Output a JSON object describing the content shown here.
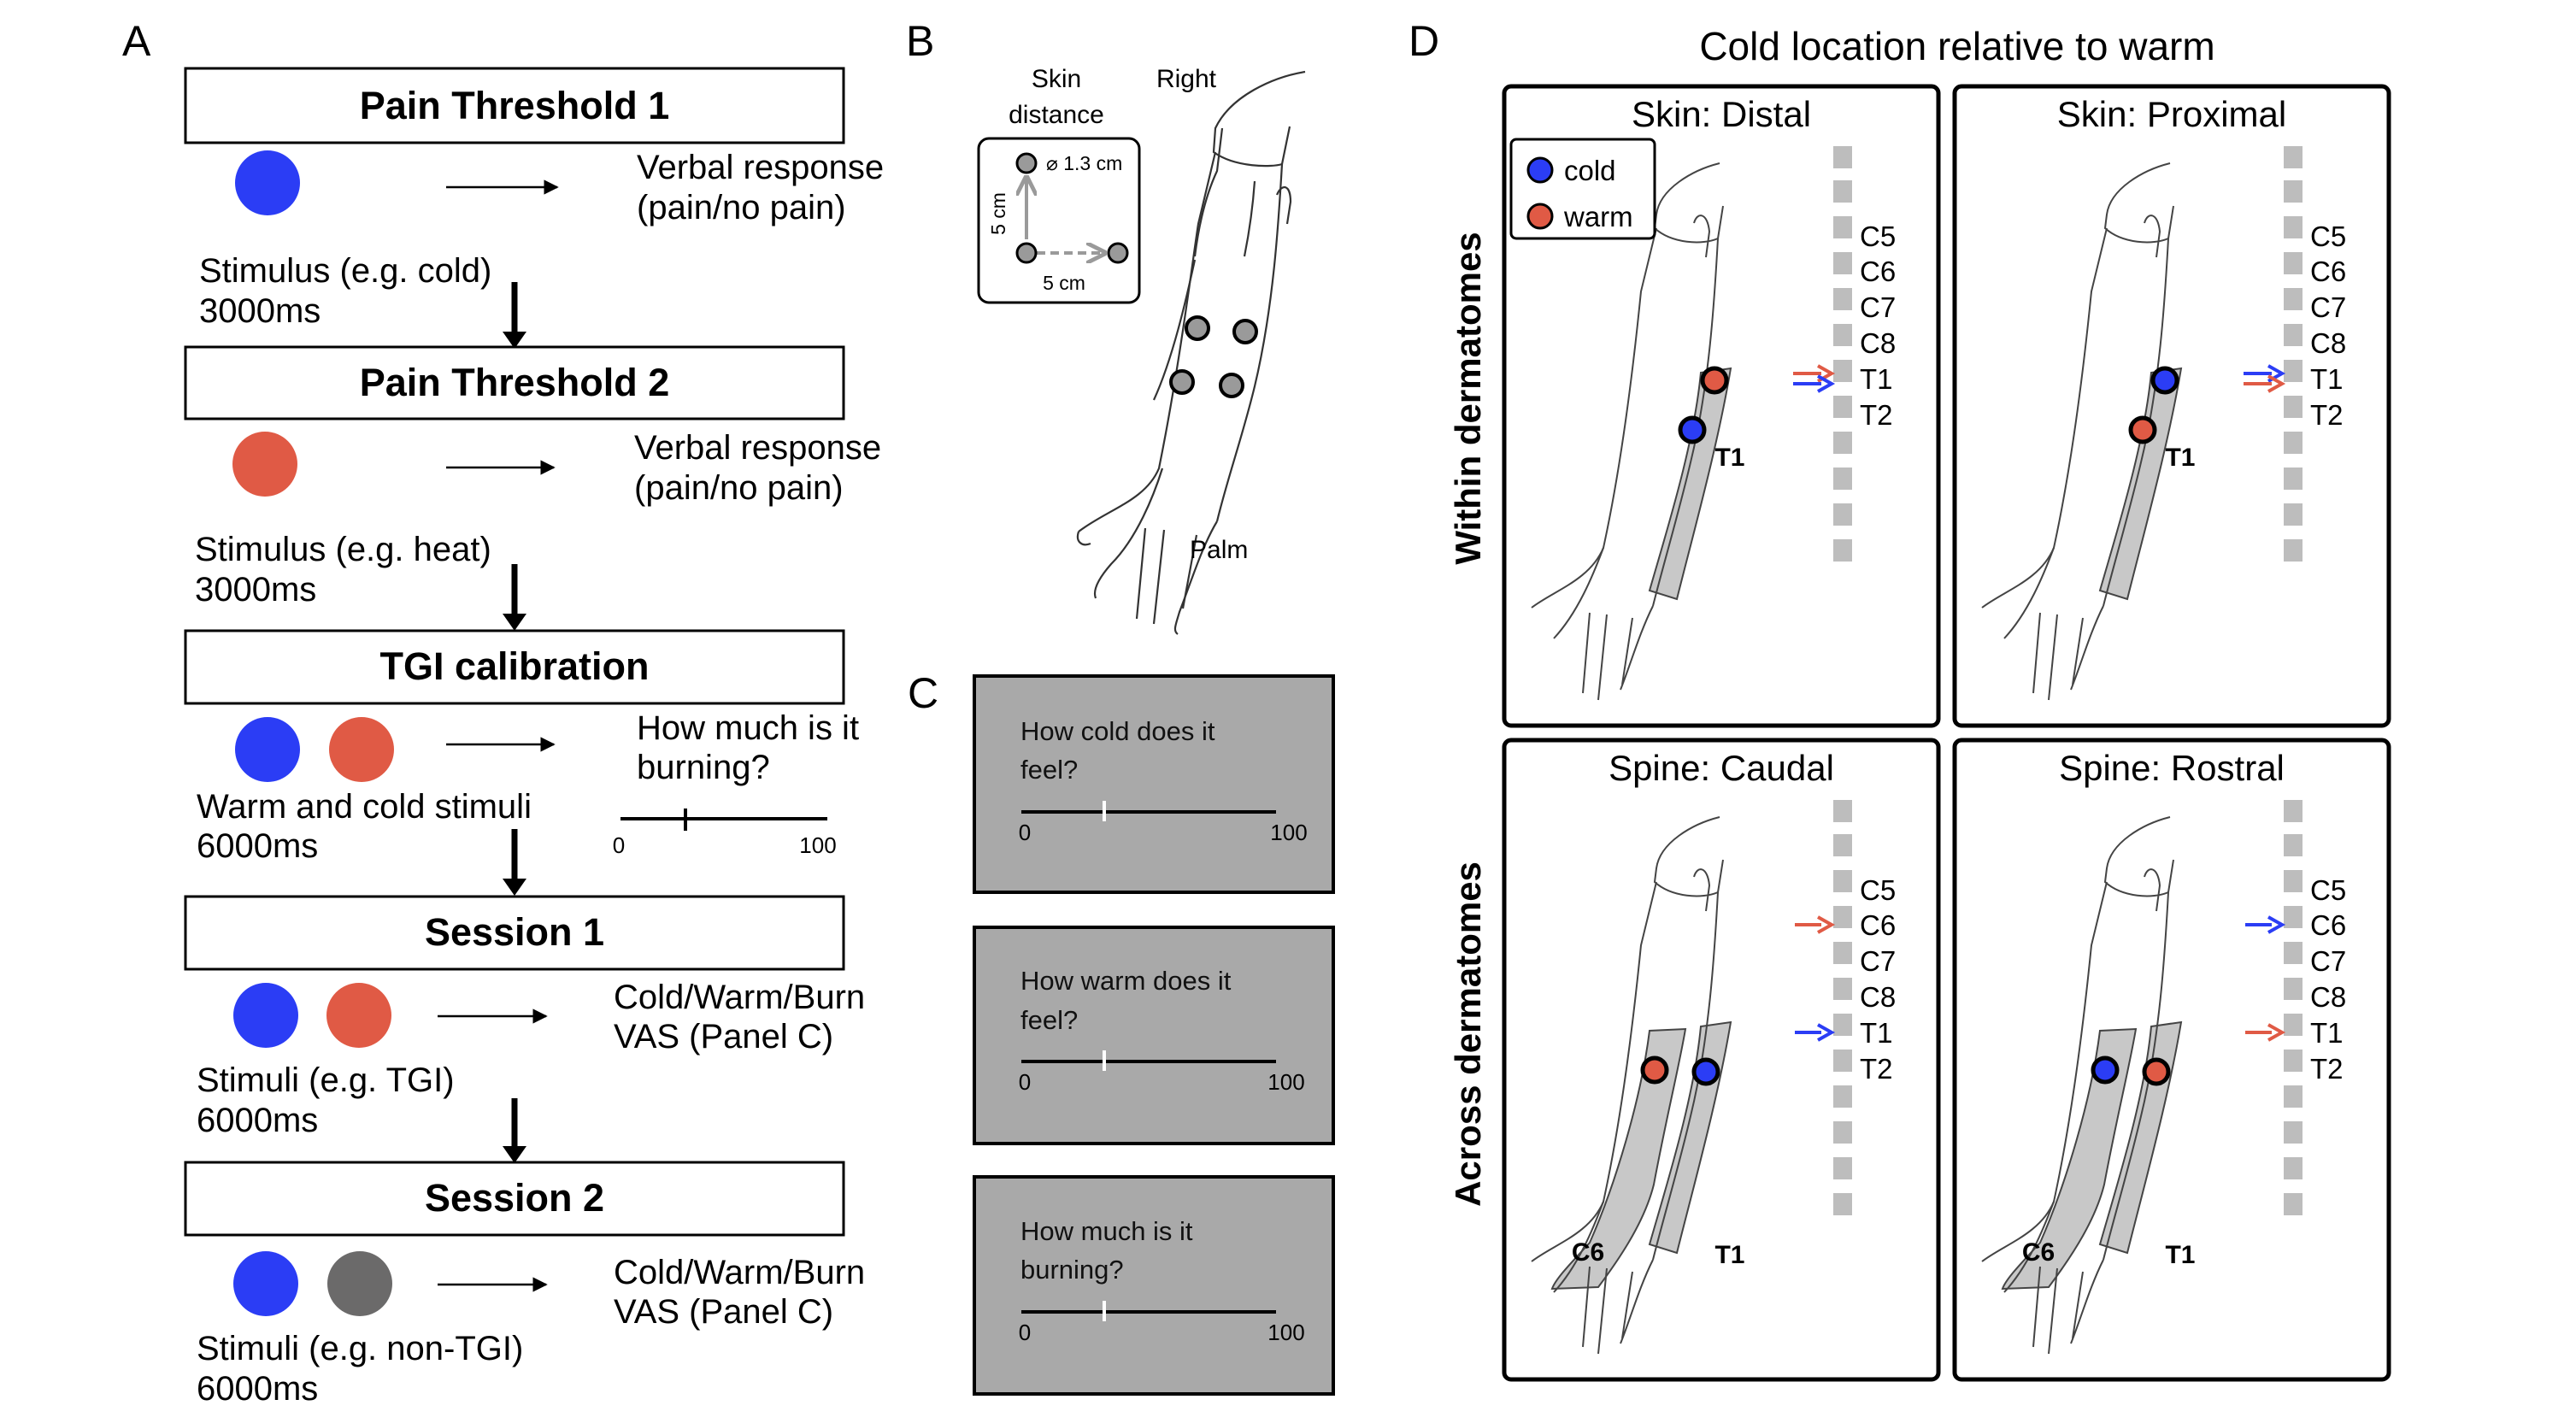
{
  "panel_labels": {
    "a": "A",
    "b": "B",
    "c": "C",
    "d": "D"
  },
  "panel_a": {
    "steps": [
      {
        "title": "Pain Threshold 1",
        "stimuli": [
          "cold"
        ],
        "response": [
          "Verbal response",
          "(pain/no pain)"
        ],
        "caption": [
          "Stimulus (e.g. cold)",
          "3000ms"
        ]
      },
      {
        "title": "Pain Threshold 2",
        "stimuli": [
          "warm"
        ],
        "response": [
          "Verbal response",
          "(pain/no pain)"
        ],
        "caption": [
          "Stimulus (e.g. heat)",
          "3000ms"
        ]
      },
      {
        "title": "TGI calibration",
        "stimuli": [
          "cold",
          "warm"
        ],
        "response": [
          "How much is it",
          "burning?"
        ],
        "caption": [
          "Warm and cold stimuli",
          "6000ms"
        ],
        "scale": {
          "min": "0",
          "max": "100",
          "marker": 0.3
        }
      },
      {
        "title": "Session 1",
        "stimuli": [
          "cold",
          "warm"
        ],
        "response": [
          "Cold/Warm/Burn",
          "VAS (Panel C)"
        ],
        "caption": [
          "Stimuli (e.g. TGI)",
          "6000ms"
        ]
      },
      {
        "title": "Session 2",
        "stimuli": [
          "cold",
          "neutral"
        ],
        "response": [
          "Cold/Warm/Burn",
          "VAS (Panel C)"
        ],
        "caption": [
          "Stimuli (e.g. non-TGI)",
          "6000ms"
        ]
      }
    ]
  },
  "panel_b": {
    "skin_distance_title": [
      "Skin",
      "distance"
    ],
    "probe_diameter": "⌀ 1.3 cm",
    "vertical_distance": "5 cm",
    "horizontal_distance": "5 cm",
    "arm_side": "Right",
    "arm_surface": "Palm"
  },
  "panel_c": {
    "scales": [
      {
        "question": [
          "How cold does it",
          "feel?"
        ],
        "min": "0",
        "max": "100",
        "marker": 0.35
      },
      {
        "question": [
          "How warm does it",
          "feel?"
        ],
        "min": "0",
        "max": "100",
        "marker": 0.35
      },
      {
        "question": [
          "How much is it",
          "burning?"
        ],
        "min": "0",
        "max": "100",
        "marker": 0.35
      }
    ]
  },
  "panel_d": {
    "title": "Cold location relative to warm",
    "row_labels": [
      "Within dermatomes",
      "Across dermatomes"
    ],
    "legend": [
      {
        "label": "cold",
        "color": "#2b3df5"
      },
      {
        "label": "warm",
        "color": "#e05a45"
      }
    ],
    "subpanels": [
      {
        "title": "Skin: Distal",
        "upper_arrow": "",
        "lower_arrows": [
          "warm",
          "cold"
        ],
        "dermatome_labels": [
          "T1"
        ],
        "probes": [
          "warm",
          "cold"
        ]
      },
      {
        "title": "Skin: Proximal",
        "upper_arrow": "",
        "lower_arrows": [
          "cold",
          "warm"
        ],
        "dermatome_labels": [
          "T1"
        ],
        "probes": [
          "cold",
          "warm"
        ]
      },
      {
        "title": "Spine: Caudal",
        "upper_arrow": "warm",
        "lower_arrows": [
          "cold"
        ],
        "dermatome_labels": [
          "C6",
          "T1"
        ],
        "probes": [
          "warm",
          "cold"
        ]
      },
      {
        "title": "Spine: Rostral",
        "upper_arrow": "cold",
        "lower_arrows": [
          "warm"
        ],
        "dermatome_labels": [
          "C6",
          "T1"
        ],
        "probes": [
          "cold",
          "warm"
        ]
      }
    ],
    "spine_levels": [
      "C5",
      "C6",
      "C7",
      "C8",
      "T1",
      "T2"
    ]
  },
  "colors": {
    "cold": "#2b3df5",
    "warm": "#e05a45",
    "neutral": "#6b6a6a",
    "vas_bg": "#a9a9a9",
    "shade": "#c8c8c8",
    "spine": "#bdbdbd"
  }
}
